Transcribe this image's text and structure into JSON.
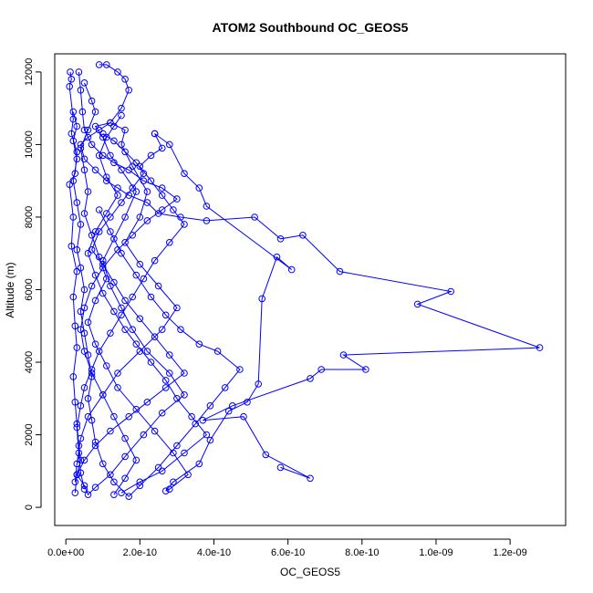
{
  "chart_data": {
    "type": "scatter",
    "title": "ATOM2 Southbound OC_GEOS5",
    "xlabel": "OC_GEOS5",
    "ylabel": "Altitude (m)",
    "xlim": [
      -3e-11,
      1.35e-09
    ],
    "ylim": [
      -500,
      12500
    ],
    "x_ticks": [
      0,
      2e-10,
      4e-10,
      6e-10,
      8e-10,
      1e-09,
      1.2e-09
    ],
    "x_tick_labels": [
      "0.0e+00",
      "2.0e-10",
      "4.0e-10",
      "6.0e-10",
      "8.0e-10",
      "1.0e-09",
      "1.2e-09"
    ],
    "y_ticks": [
      0,
      2000,
      4000,
      6000,
      8000,
      10000,
      12000
    ],
    "y_tick_labels": [
      "0",
      "2000",
      "4000",
      "6000",
      "8000",
      "10000",
      "12000"
    ],
    "grid": false,
    "legend": "none",
    "series_color": "#0000ff",
    "series": [
      {
        "points": [
          [
            1.2e-11,
            12000
          ],
          [
            1.5e-11,
            11800
          ],
          [
            1e-11,
            11600
          ],
          [
            2e-11,
            10700
          ],
          [
            1.5e-11,
            10300
          ],
          [
            3e-11,
            9800
          ],
          [
            2.5e-11,
            9200
          ],
          [
            1e-11,
            8900
          ],
          [
            2e-11,
            8000
          ],
          [
            1.5e-11,
            7200
          ],
          [
            3e-11,
            6500
          ],
          [
            2e-11,
            5800
          ],
          [
            2.5e-11,
            5000
          ],
          [
            3e-11,
            4400
          ],
          [
            2e-11,
            3600
          ],
          [
            2.5e-11,
            2900
          ],
          [
            3e-11,
            2300
          ],
          [
            3.5e-11,
            1700
          ],
          [
            4e-11,
            1300
          ],
          [
            3e-11,
            900
          ],
          [
            5e-11,
            600
          ],
          [
            6e-11,
            350
          ],
          [
            8e-11,
            550
          ],
          [
            1.2e-10,
            900
          ],
          [
            1.6e-10,
            1400
          ],
          [
            2.1e-10,
            2000
          ],
          [
            2.6e-10,
            2600
          ],
          [
            3.2e-10,
            3100
          ],
          [
            2.8e-10,
            3700
          ],
          [
            2.2e-10,
            4300
          ],
          [
            1.8e-10,
            4900
          ],
          [
            1.5e-10,
            5500
          ],
          [
            1.2e-10,
            6100
          ],
          [
            1e-10,
            6800
          ],
          [
            1.3e-10,
            7400
          ],
          [
            1.6e-10,
            8000
          ],
          [
            1.9e-10,
            8700
          ],
          [
            1.5e-10,
            9300
          ],
          [
            1.2e-10,
            9700
          ],
          [
            1e-10,
            10200
          ],
          [
            8e-11,
            10500
          ],
          [
            1.2e-10,
            10600
          ],
          [
            1.6e-10,
            10400
          ],
          [
            1.5e-10,
            10000
          ],
          [
            1.8e-10,
            9400
          ],
          [
            2.2e-10,
            8700
          ],
          [
            2e-10,
            8000
          ],
          [
            1.6e-10,
            7300
          ],
          [
            2e-10,
            6700
          ],
          [
            2.5e-10,
            6100
          ],
          [
            3e-10,
            5500
          ],
          [
            2.6e-10,
            4900
          ],
          [
            2e-10,
            4300
          ],
          [
            1.4e-10,
            3700
          ],
          [
            1e-10,
            3100
          ],
          [
            6e-11,
            2500
          ],
          [
            4e-11,
            1900
          ],
          [
            3e-11,
            1200
          ],
          [
            2.5e-11,
            700
          ]
        ]
      },
      {
        "points": [
          [
            9e-11,
            12200
          ],
          [
            1.1e-10,
            12200
          ],
          [
            1.4e-10,
            12000
          ],
          [
            1.6e-10,
            11800
          ],
          [
            1.7e-10,
            11500
          ],
          [
            1.5e-10,
            11000
          ],
          [
            1.2e-10,
            10600
          ],
          [
            9e-11,
            10400
          ],
          [
            6e-11,
            10200
          ],
          [
            4e-11,
            10000
          ],
          [
            5e-11,
            9600
          ],
          [
            8e-11,
            9300
          ],
          [
            1.1e-10,
            9000
          ],
          [
            1.4e-10,
            8800
          ],
          [
            1.7e-10,
            8600
          ],
          [
            2.2e-10,
            8400
          ],
          [
            2.5e-10,
            8100
          ],
          [
            3.1e-10,
            8000
          ],
          [
            3.8e-10,
            7900
          ],
          [
            5.1e-10,
            8000
          ],
          [
            5.8e-10,
            7400
          ],
          [
            6.4e-10,
            7500
          ],
          [
            7.4e-10,
            6500
          ],
          [
            1.04e-09,
            5950
          ],
          [
            9.5e-10,
            5600
          ],
          [
            1.28e-09,
            4400
          ],
          [
            7.5e-10,
            4200
          ],
          [
            8.1e-10,
            3800
          ],
          [
            6.9e-10,
            3800
          ],
          [
            6.6e-10,
            3550
          ],
          [
            4.5e-10,
            2800
          ],
          [
            3.7e-10,
            2400
          ],
          [
            4.8e-10,
            2500
          ],
          [
            5.4e-10,
            1450
          ],
          [
            6.6e-10,
            800
          ],
          [
            5.8e-10,
            1100
          ]
        ]
      },
      {
        "points": [
          [
            5e-11,
            11700
          ],
          [
            7e-11,
            11200
          ],
          [
            8e-11,
            10900
          ],
          [
            6e-11,
            10400
          ],
          [
            4e-11,
            9900
          ],
          [
            5e-11,
            9300
          ],
          [
            6e-11,
            8700
          ],
          [
            5e-11,
            8100
          ],
          [
            7e-11,
            7500
          ],
          [
            9e-11,
            6900
          ],
          [
            1.1e-10,
            6300
          ],
          [
            8e-11,
            5700
          ],
          [
            6e-11,
            5100
          ],
          [
            8e-11,
            4500
          ],
          [
            1.1e-10,
            3900
          ],
          [
            1.4e-10,
            3300
          ],
          [
            1.9e-10,
            2700
          ],
          [
            2.4e-10,
            2100
          ],
          [
            2.9e-10,
            1500
          ],
          [
            3.3e-10,
            900
          ],
          [
            2.8e-10,
            500
          ],
          [
            2.7e-10,
            450
          ],
          [
            2.9e-10,
            700
          ],
          [
            3.6e-10,
            1200
          ],
          [
            3.9e-10,
            1850
          ],
          [
            4.4e-10,
            2650
          ],
          [
            4.9e-10,
            2900
          ],
          [
            5.2e-10,
            3400
          ],
          [
            5.3e-10,
            5750
          ],
          [
            5.7e-10,
            6900
          ],
          [
            6.1e-10,
            6550
          ],
          [
            3.8e-10,
            8300
          ],
          [
            3.6e-10,
            8800
          ],
          [
            3.2e-10,
            9200
          ],
          [
            2.8e-10,
            10000
          ],
          [
            2.4e-10,
            10300
          ]
        ]
      },
      {
        "points": [
          [
            2e-11,
            10900
          ],
          [
            3e-11,
            10500
          ],
          [
            2e-11,
            10100
          ],
          [
            3e-11,
            9600
          ],
          [
            2e-11,
            9000
          ],
          [
            3e-11,
            8400
          ],
          [
            4e-11,
            7800
          ],
          [
            3e-11,
            7100
          ],
          [
            4e-11,
            6600
          ],
          [
            5e-11,
            6000
          ],
          [
            4e-11,
            5400
          ],
          [
            5e-11,
            4800
          ],
          [
            6e-11,
            4200
          ],
          [
            7e-11,
            3600
          ],
          [
            6e-11,
            3000
          ],
          [
            7e-11,
            2400
          ],
          [
            8e-11,
            1800
          ],
          [
            1e-10,
            1200
          ],
          [
            1.3e-10,
            700
          ],
          [
            1.7e-10,
            300
          ],
          [
            2e-10,
            600
          ],
          [
            2.5e-10,
            1100
          ],
          [
            3e-10,
            1700
          ],
          [
            3.5e-10,
            2300
          ],
          [
            3.9e-10,
            2800
          ],
          [
            4.3e-10,
            3300
          ],
          [
            4.7e-10,
            3800
          ],
          [
            4.1e-10,
            4300
          ],
          [
            3.6e-10,
            4500
          ],
          [
            3.1e-10,
            4900
          ],
          [
            2.7e-10,
            5300
          ],
          [
            2.3e-10,
            5800
          ],
          [
            1.9e-10,
            6400
          ],
          [
            1.5e-10,
            7000
          ],
          [
            1.2e-10,
            7600
          ],
          [
            9e-11,
            8200
          ]
        ]
      },
      {
        "points": [
          [
            1e-10,
            10300
          ],
          [
            1.3e-10,
            10100
          ],
          [
            1.6e-10,
            9800
          ],
          [
            1.9e-10,
            9500
          ],
          [
            2.1e-10,
            9200
          ],
          [
            1.8e-10,
            8800
          ],
          [
            1.5e-10,
            8400
          ],
          [
            1.2e-10,
            8000
          ],
          [
            9e-11,
            7600
          ],
          [
            7e-11,
            7100
          ],
          [
            1e-10,
            6700
          ],
          [
            1.3e-10,
            6200
          ],
          [
            1.6e-10,
            5700
          ],
          [
            2e-10,
            5200
          ],
          [
            2.4e-10,
            4700
          ],
          [
            2.8e-10,
            4200
          ],
          [
            3.2e-10,
            3700
          ],
          [
            2.7e-10,
            3300
          ],
          [
            2.2e-10,
            2900
          ],
          [
            1.7e-10,
            2500
          ],
          [
            1.2e-10,
            2100
          ],
          [
            8e-11,
            1700
          ],
          [
            5e-11,
            1300
          ],
          [
            3e-11,
            900
          ],
          [
            2.5e-11,
            400
          ]
        ]
      },
      {
        "points": [
          [
            2.4e-10,
            10300
          ],
          [
            2.6e-10,
            9900
          ],
          [
            2.3e-10,
            9700
          ],
          [
            2e-10,
            9400
          ],
          [
            2.3e-10,
            9000
          ],
          [
            2.6e-10,
            8600
          ],
          [
            2.9e-10,
            8200
          ],
          [
            3.2e-10,
            7800
          ],
          [
            2.8e-10,
            7300
          ],
          [
            2.4e-10,
            6800
          ],
          [
            2.1e-10,
            6300
          ],
          [
            1.8e-10,
            5800
          ],
          [
            1.5e-10,
            5300
          ],
          [
            1.2e-10,
            4800
          ],
          [
            9e-11,
            4300
          ],
          [
            7e-11,
            3800
          ],
          [
            5e-11,
            3300
          ],
          [
            4e-11,
            2800
          ],
          [
            3e-11,
            2200
          ],
          [
            3.5e-11,
            1500
          ],
          [
            4e-11,
            950
          ],
          [
            5e-11,
            500
          ]
        ]
      },
      {
        "points": [
          [
            1.5e-10,
            10800
          ],
          [
            1.3e-10,
            10500
          ],
          [
            1.1e-10,
            10200
          ],
          [
            9e-11,
            9700
          ],
          [
            1.1e-10,
            9100
          ],
          [
            1.4e-10,
            8600
          ],
          [
            1.1e-10,
            8100
          ],
          [
            8e-11,
            7600
          ],
          [
            6e-11,
            7000
          ],
          [
            8e-11,
            6400
          ],
          [
            1e-10,
            5900
          ],
          [
            1.3e-10,
            5400
          ],
          [
            1.6e-10,
            4900
          ],
          [
            1.9e-10,
            4500
          ],
          [
            2.3e-10,
            4000
          ],
          [
            2.7e-10,
            3500
          ],
          [
            3e-10,
            3000
          ],
          [
            3.4e-10,
            2500
          ],
          [
            3.8e-10,
            2000
          ],
          [
            3.2e-10,
            1500
          ],
          [
            2.6e-10,
            1000
          ],
          [
            2e-10,
            700
          ],
          [
            1.5e-10,
            400
          ]
        ]
      },
      {
        "points": [
          [
            3.5e-11,
            12000
          ],
          [
            4e-11,
            11500
          ],
          [
            4.5e-11,
            10900
          ],
          [
            5e-11,
            10400
          ],
          [
            7e-11,
            10000
          ],
          [
            1e-10,
            9700
          ],
          [
            1.3e-10,
            9500
          ],
          [
            1.7e-10,
            9300
          ],
          [
            2.1e-10,
            9000
          ],
          [
            2.6e-10,
            8800
          ],
          [
            3e-10,
            8500
          ],
          [
            2.6e-10,
            8200
          ],
          [
            2.2e-10,
            7900
          ],
          [
            1.8e-10,
            7500
          ],
          [
            1.4e-10,
            7100
          ],
          [
            1e-10,
            6600
          ],
          [
            7e-11,
            6100
          ],
          [
            5e-11,
            5500
          ],
          [
            4e-11,
            4900
          ],
          [
            5e-11,
            4300
          ],
          [
            7e-11,
            3700
          ],
          [
            1e-10,
            3100
          ],
          [
            1.3e-10,
            2500
          ],
          [
            1.6e-10,
            1900
          ],
          [
            1.9e-10,
            1300
          ],
          [
            1.6e-10,
            800
          ],
          [
            1.3e-10,
            350
          ]
        ]
      }
    ]
  }
}
